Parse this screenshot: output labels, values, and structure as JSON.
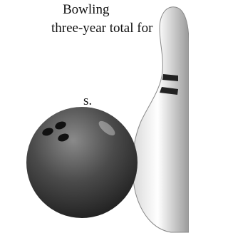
{
  "text": {
    "lines": [
      "Bowling",
      "three-year total for",
      "s."
    ]
  }
}
